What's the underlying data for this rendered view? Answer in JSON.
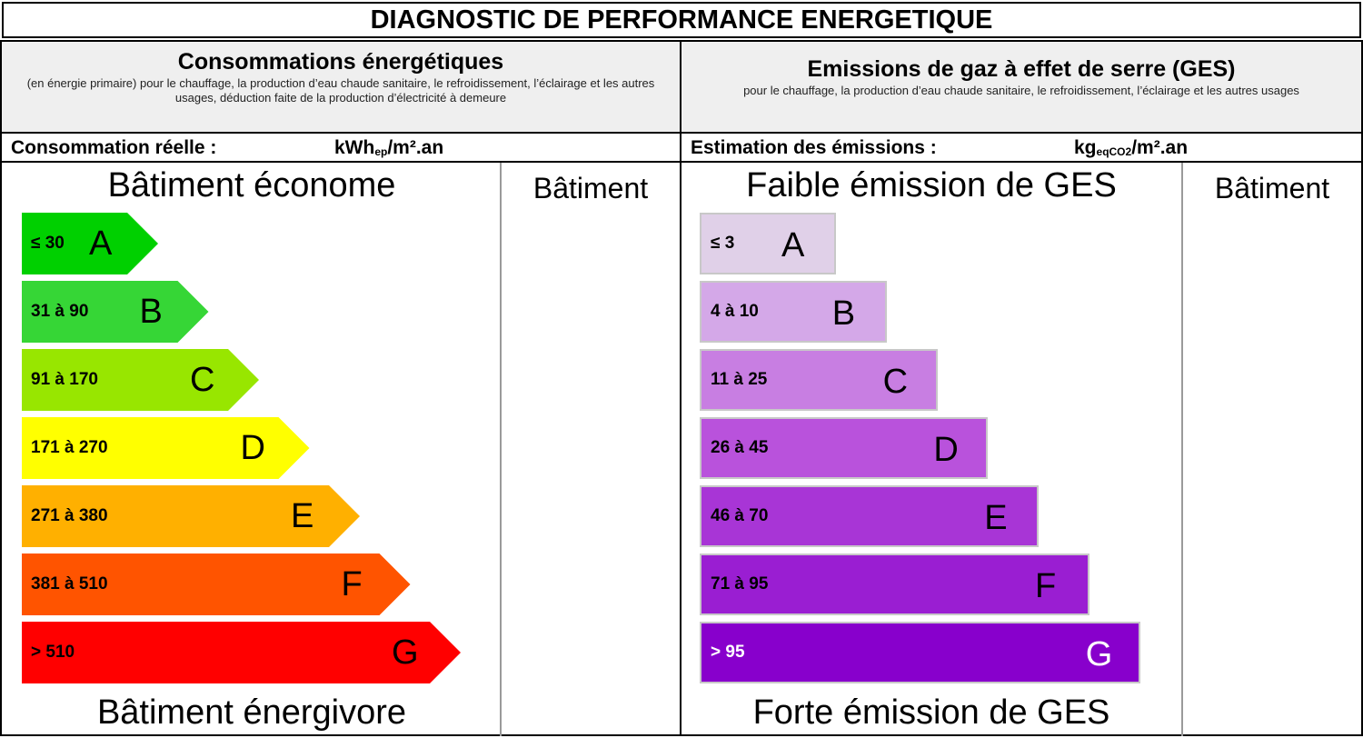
{
  "title": "DIAGNOSTIC DE PERFORMANCE ENERGETIQUE",
  "energy": {
    "title": "Consommations énergétiques",
    "subtitle": "(en énergie primaire) pour le chauffage, la production d’eau chaude sanitaire, le refroidissement, l’éclairage et les autres usages, déduction faite de la production d’électricité à demeure",
    "consumption_label": "Consommation réelle :",
    "unit_main": "kWh",
    "unit_sub": "ep",
    "unit_tail": "/m².an",
    "top_label": "Bâtiment économe",
    "bottom_label": "Bâtiment énergivore",
    "building_label": "Bâtiment",
    "bands": [
      {
        "range": "≤ 30",
        "letter": "A",
        "color": "#00d000"
      },
      {
        "range": "31 à 90",
        "letter": "B",
        "color": "#36d636"
      },
      {
        "range": "91 à 170",
        "letter": "C",
        "color": "#98e600"
      },
      {
        "range": "171 à 270",
        "letter": "D",
        "color": "#ffff00"
      },
      {
        "range": "271 à 380",
        "letter": "E",
        "color": "#ffb000"
      },
      {
        "range": "381 à 510",
        "letter": "F",
        "color": "#ff5400"
      },
      {
        "range": "> 510",
        "letter": "G",
        "color": "#ff0000"
      }
    ]
  },
  "ges": {
    "title": "Emissions de gaz à effet de serre (GES)",
    "subtitle": "pour le chauffage, la production d’eau chaude sanitaire, le refroidissement, l’éclairage et les autres usages",
    "estimation_label": "Estimation des émissions :",
    "unit_main": "kg",
    "unit_sub": "eqCO2",
    "unit_tail": "/m².an",
    "top_label": "Faible émission de GES",
    "bottom_label": "Forte émission de GES",
    "building_label": "Bâtiment",
    "bands": [
      {
        "range": "≤ 3",
        "letter": "A",
        "color": "#e0d0e8",
        "text": "#000"
      },
      {
        "range": "4 à 10",
        "letter": "B",
        "color": "#d4a8e8",
        "text": "#000"
      },
      {
        "range": "11 à 25",
        "letter": "C",
        "color": "#c87ee2",
        "text": "#000"
      },
      {
        "range": "26 à 45",
        "letter": "D",
        "color": "#b952dc",
        "text": "#000"
      },
      {
        "range": "46 à 70",
        "letter": "E",
        "color": "#a835d6",
        "text": "#000"
      },
      {
        "range": "71 à 95",
        "letter": "F",
        "color": "#9a1ed2",
        "text": "#000"
      },
      {
        "range": "> 95",
        "letter": "G",
        "color": "#8800cc",
        "text": "#fff"
      }
    ]
  }
}
